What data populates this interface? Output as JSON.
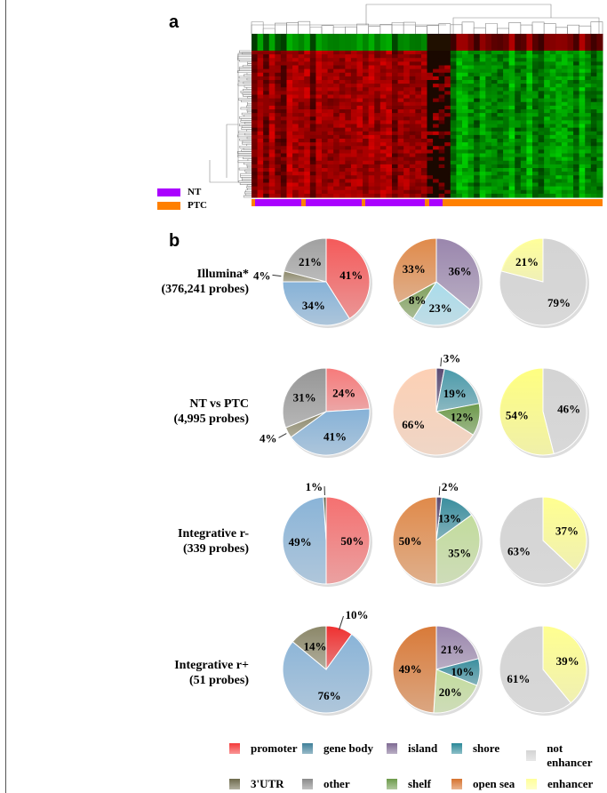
{
  "panels": {
    "a": "a",
    "b": "b"
  },
  "heatmap": {
    "legend": [
      {
        "label": "NT",
        "color": "#aa00ff"
      },
      {
        "label": "PTC",
        "color": "#ff8000"
      }
    ],
    "sample_groups": [
      "PTC",
      "NT",
      "PTC",
      "NT",
      "PTC",
      "NT",
      "PTC",
      "NT",
      "PTC"
    ],
    "colors": {
      "high": "#ff0000",
      "low": "#00ff00",
      "mid": "#000000"
    }
  },
  "rows": [
    {
      "label": "Illumina*",
      "sub": "(376,241 probes)"
    },
    {
      "label": "NT vs PTC",
      "sub": "(4,995 probes)"
    },
    {
      "label": "Integrative r-",
      "sub": "(339 probes)"
    },
    {
      "label": "Integrative r+",
      "sub": "(51 probes)"
    }
  ],
  "legend": [
    {
      "label": "promoter",
      "color": "#f43a3a"
    },
    {
      "label": "gene body",
      "color": "#3f7f99"
    },
    {
      "label": "island",
      "color": "#7e6a93"
    },
    {
      "label": "shore",
      "color": "#2a8898"
    },
    {
      "label": "not enhancer",
      "color": "#d4d4d4"
    },
    {
      "label": "3'UTR",
      "color": "#6d6a4c"
    },
    {
      "label": "other",
      "color": "#8a8a8a"
    },
    {
      "label": "shelf",
      "color": "#6c9a4a"
    },
    {
      "label": "open sea",
      "color": "#d6722e"
    },
    {
      "label": "enhancer",
      "color": "#ffff99"
    }
  ],
  "chart_data": [
    {
      "type": "pie",
      "row": "Illumina*",
      "group": "gene region",
      "slices": [
        {
          "name": "promoter",
          "value": 41,
          "color": "#f55a5a"
        },
        {
          "name": "gene body",
          "value": 34,
          "color": "#86b2d8"
        },
        {
          "name": "3'UTR",
          "value": 4,
          "color": "#8b8768"
        },
        {
          "name": "other",
          "value": 21,
          "color": "#a0a0a0"
        }
      ]
    },
    {
      "type": "pie",
      "row": "Illumina*",
      "group": "CpG context",
      "slices": [
        {
          "name": "island",
          "value": 36,
          "color": "#9a86ad"
        },
        {
          "name": "shore",
          "value": 23,
          "color": "#a9dceb"
        },
        {
          "name": "shelf",
          "value": 8,
          "color": "#7ea05a"
        },
        {
          "name": "open sea",
          "value": 33,
          "color": "#e08a4a"
        }
      ]
    },
    {
      "type": "pie",
      "row": "Illumina*",
      "group": "enhancer",
      "slices": [
        {
          "name": "not enhancer",
          "value": 79,
          "color": "#d4d4d4"
        },
        {
          "name": "enhancer",
          "value": 21,
          "color": "#ffff99"
        }
      ]
    },
    {
      "type": "pie",
      "row": "NT vs PTC",
      "group": "gene region",
      "slices": [
        {
          "name": "promoter",
          "value": 24,
          "color": "#f77a7a"
        },
        {
          "name": "gene body",
          "value": 41,
          "color": "#86b2d8"
        },
        {
          "name": "3'UTR",
          "value": 4,
          "color": "#8b8768"
        },
        {
          "name": "other",
          "value": 31,
          "color": "#969696"
        }
      ]
    },
    {
      "type": "pie",
      "row": "NT vs PTC",
      "group": "CpG context",
      "slices": [
        {
          "name": "island",
          "value": 3,
          "color": "#5a4a72"
        },
        {
          "name": "shore",
          "value": 19,
          "color": "#4a9aaa"
        },
        {
          "name": "shelf",
          "value": 12,
          "color": "#6c9a4a"
        },
        {
          "name": "open sea",
          "value": 66,
          "color": "#fdd0b4"
        }
      ]
    },
    {
      "type": "pie",
      "row": "NT vs PTC",
      "group": "enhancer",
      "slices": [
        {
          "name": "not enhancer",
          "value": 46,
          "color": "#d4d4d4"
        },
        {
          "name": "enhancer",
          "value": 54,
          "color": "#ffff80"
        }
      ]
    },
    {
      "type": "pie",
      "row": "Integrative r-",
      "group": "gene region",
      "slices": [
        {
          "name": "promoter",
          "value": 50,
          "color": "#f57070"
        },
        {
          "name": "gene body",
          "value": 49,
          "color": "#8ab4d8"
        },
        {
          "name": "3'UTR",
          "value": 1,
          "color": "#5a5a40"
        }
      ]
    },
    {
      "type": "pie",
      "row": "Integrative r-",
      "group": "CpG context",
      "slices": [
        {
          "name": "island",
          "value": 2,
          "color": "#5a4a72"
        },
        {
          "name": "shore",
          "value": 13,
          "color": "#3a8e9e"
        },
        {
          "name": "shelf",
          "value": 35,
          "color": "#c2dc9c"
        },
        {
          "name": "open sea",
          "value": 50,
          "color": "#e08a4a"
        }
      ]
    },
    {
      "type": "pie",
      "row": "Integrative r-",
      "group": "enhancer",
      "slices": [
        {
          "name": "enhancer",
          "value": 37,
          "color": "#ffff90"
        },
        {
          "name": "not enhancer",
          "value": 63,
          "color": "#d4d4d4"
        }
      ]
    },
    {
      "type": "pie",
      "row": "Integrative r+",
      "group": "gene region",
      "slices": [
        {
          "name": "promoter",
          "value": 10,
          "color": "#f03030"
        },
        {
          "name": "gene body",
          "value": 76,
          "color": "#8ab4d8"
        },
        {
          "name": "3'UTR",
          "value": 14,
          "color": "#8b8768"
        }
      ]
    },
    {
      "type": "pie",
      "row": "Integrative r+",
      "group": "CpG context",
      "slices": [
        {
          "name": "island",
          "value": 21,
          "color": "#9a86ad"
        },
        {
          "name": "shore",
          "value": 10,
          "color": "#3a8e9e"
        },
        {
          "name": "shelf",
          "value": 20,
          "color": "#c2dc9c"
        },
        {
          "name": "open sea",
          "value": 49,
          "color": "#d97a38"
        }
      ]
    },
    {
      "type": "pie",
      "row": "Integrative r+",
      "group": "enhancer",
      "slices": [
        {
          "name": "enhancer",
          "value": 39,
          "color": "#ffff90"
        },
        {
          "name": "not enhancer",
          "value": 61,
          "color": "#d4d4d4"
        }
      ]
    }
  ]
}
